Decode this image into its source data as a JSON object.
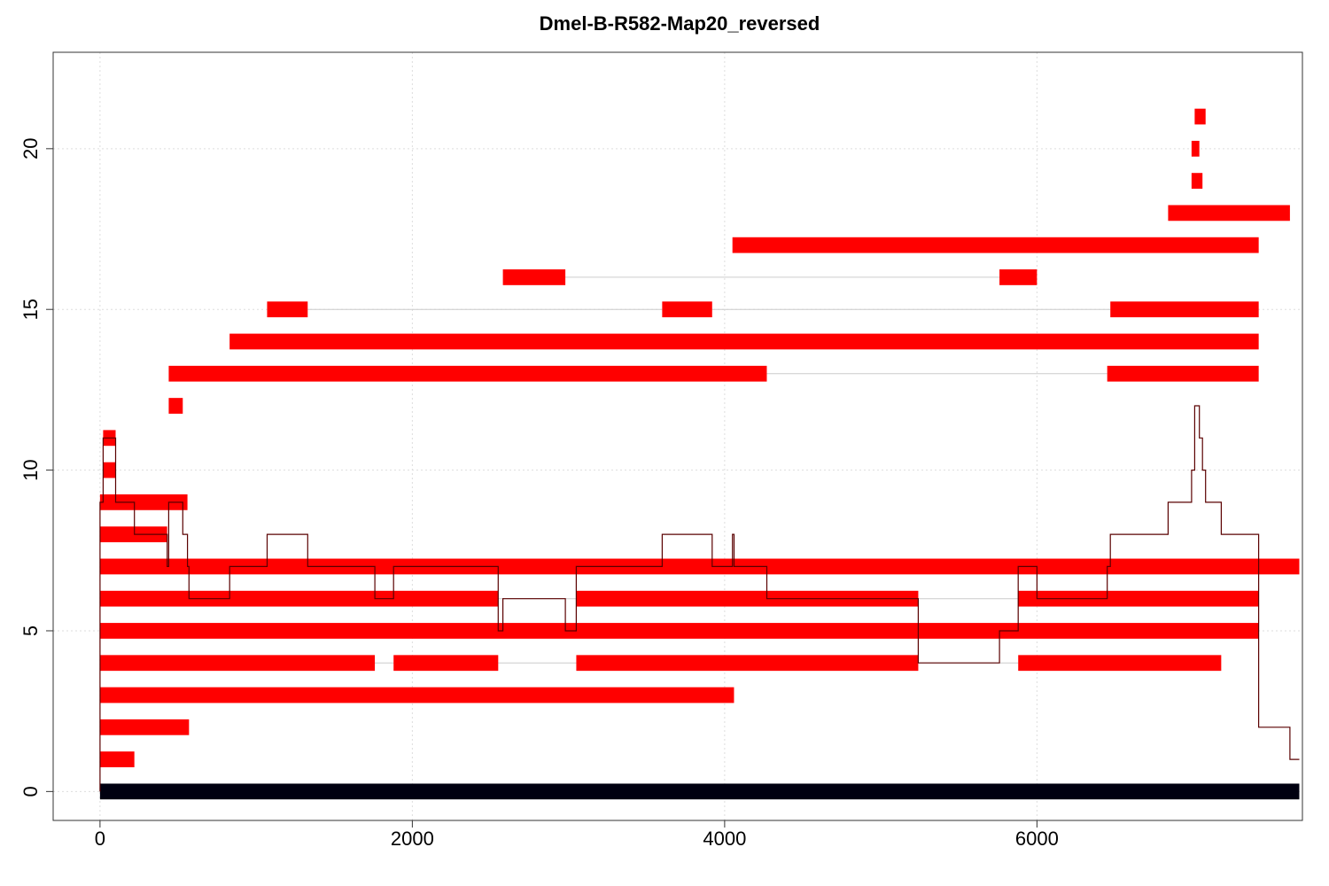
{
  "chart_data": {
    "type": "bar",
    "title": "Dmel-B-R582-Map20_reversed",
    "xlabel": "",
    "ylabel": "",
    "xlim": [
      -300,
      7700
    ],
    "ylim": [
      -0.9,
      23
    ],
    "x_ticks": [
      0,
      2000,
      4000,
      6000
    ],
    "y_ticks": [
      0,
      5,
      10,
      15,
      20
    ],
    "grid": true,
    "colors": {
      "read": "#ff0000",
      "reference": "#000010",
      "coverage": "#5a0000",
      "connector": "#cccccc",
      "grid": "#dddddd"
    },
    "reference": {
      "start": 0,
      "end": 7680,
      "y": 0
    },
    "reads": [
      {
        "y": 1,
        "segments": [
          [
            0,
            220
          ]
        ]
      },
      {
        "y": 2,
        "segments": [
          [
            0,
            570
          ]
        ]
      },
      {
        "y": 3,
        "segments": [
          [
            0,
            4060
          ]
        ]
      },
      {
        "y": 4,
        "segments": [
          [
            0,
            1760
          ],
          [
            1880,
            2550
          ],
          [
            3050,
            5240
          ],
          [
            5880,
            7180
          ]
        ]
      },
      {
        "y": 5,
        "segments": [
          [
            0,
            7420
          ]
        ]
      },
      {
        "y": 6,
        "segments": [
          [
            0,
            2550
          ],
          [
            3050,
            5240
          ],
          [
            5880,
            7420
          ]
        ]
      },
      {
        "y": 7,
        "segments": [
          [
            0,
            7680
          ]
        ]
      },
      {
        "y": 8,
        "segments": [
          [
            0,
            430
          ]
        ]
      },
      {
        "y": 9,
        "segments": [
          [
            0,
            560
          ]
        ]
      },
      {
        "y": 10,
        "segments": [
          [
            20,
            100
          ]
        ]
      },
      {
        "y": 11,
        "segments": [
          [
            20,
            100
          ]
        ]
      },
      {
        "y": 12,
        "segments": [
          [
            440,
            530
          ]
        ]
      },
      {
        "y": 13,
        "segments": [
          [
            440,
            4270
          ],
          [
            6450,
            7420
          ]
        ]
      },
      {
        "y": 14,
        "segments": [
          [
            830,
            7420
          ]
        ]
      },
      {
        "y": 15,
        "segments": [
          [
            1070,
            1330
          ],
          [
            3600,
            3920
          ],
          [
            6470,
            7420
          ]
        ]
      },
      {
        "y": 16,
        "segments": [
          [
            2580,
            2980
          ],
          [
            5760,
            6000
          ]
        ]
      },
      {
        "y": 17,
        "segments": [
          [
            4050,
            7420
          ]
        ]
      },
      {
        "y": 18,
        "segments": [
          [
            6840,
            7620
          ]
        ]
      },
      {
        "y": 19,
        "segments": [
          [
            6990,
            7060
          ]
        ]
      },
      {
        "y": 20,
        "segments": [
          [
            6990,
            7040
          ]
        ]
      },
      {
        "y": 21,
        "segments": [
          [
            7010,
            7080
          ]
        ]
      }
    ],
    "coverage": [
      [
        0,
        9
      ],
      [
        20,
        11
      ],
      [
        100,
        9
      ],
      [
        220,
        8
      ],
      [
        430,
        7
      ],
      [
        440,
        9
      ],
      [
        530,
        8
      ],
      [
        560,
        7
      ],
      [
        570,
        6
      ],
      [
        830,
        7
      ],
      [
        1070,
        8
      ],
      [
        1330,
        7
      ],
      [
        1760,
        6
      ],
      [
        1880,
        7
      ],
      [
        2550,
        5
      ],
      [
        2580,
        6
      ],
      [
        2980,
        5
      ],
      [
        3050,
        7
      ],
      [
        3600,
        8
      ],
      [
        3920,
        7
      ],
      [
        4050,
        8
      ],
      [
        4060,
        7
      ],
      [
        4270,
        6
      ],
      [
        5240,
        4
      ],
      [
        5760,
        5
      ],
      [
        5880,
        7
      ],
      [
        6000,
        6
      ],
      [
        6450,
        7
      ],
      [
        6470,
        8
      ],
      [
        6840,
        9
      ],
      [
        6990,
        10
      ],
      [
        7010,
        12
      ],
      [
        7040,
        11
      ],
      [
        7060,
        10
      ],
      [
        7080,
        9
      ],
      [
        7180,
        8
      ],
      [
        7420,
        2
      ],
      [
        7620,
        1
      ],
      [
        7680,
        1
      ]
    ]
  }
}
